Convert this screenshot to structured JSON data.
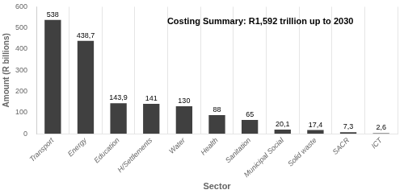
{
  "chart_data": {
    "type": "bar",
    "categories": [
      "Transport",
      "Energy",
      "Education",
      "H/Settlements",
      "Water",
      "Health",
      "Sanitation",
      "Municipal Social",
      "Solid waste",
      "SACR",
      "ICT"
    ],
    "values": [
      538,
      438.7,
      143.9,
      141,
      130,
      88,
      65,
      20.1,
      17.4,
      7.3,
      2.6
    ],
    "value_labels": [
      "538",
      "438,7",
      "143,9",
      "141",
      "130",
      "88",
      "65",
      "20,1",
      "17,4",
      "7,3",
      "2,6"
    ],
    "data_labels": true,
    "color": "#404040",
    "annotation": "Costing Summary: R1,592 trillion up to 2030",
    "xlabel": "Sector",
    "ylabel": "Amount (R billions)",
    "ylim": [
      0,
      600
    ],
    "yticks": [
      0,
      100,
      200,
      300,
      400,
      500,
      600
    ],
    "grid": "x"
  }
}
